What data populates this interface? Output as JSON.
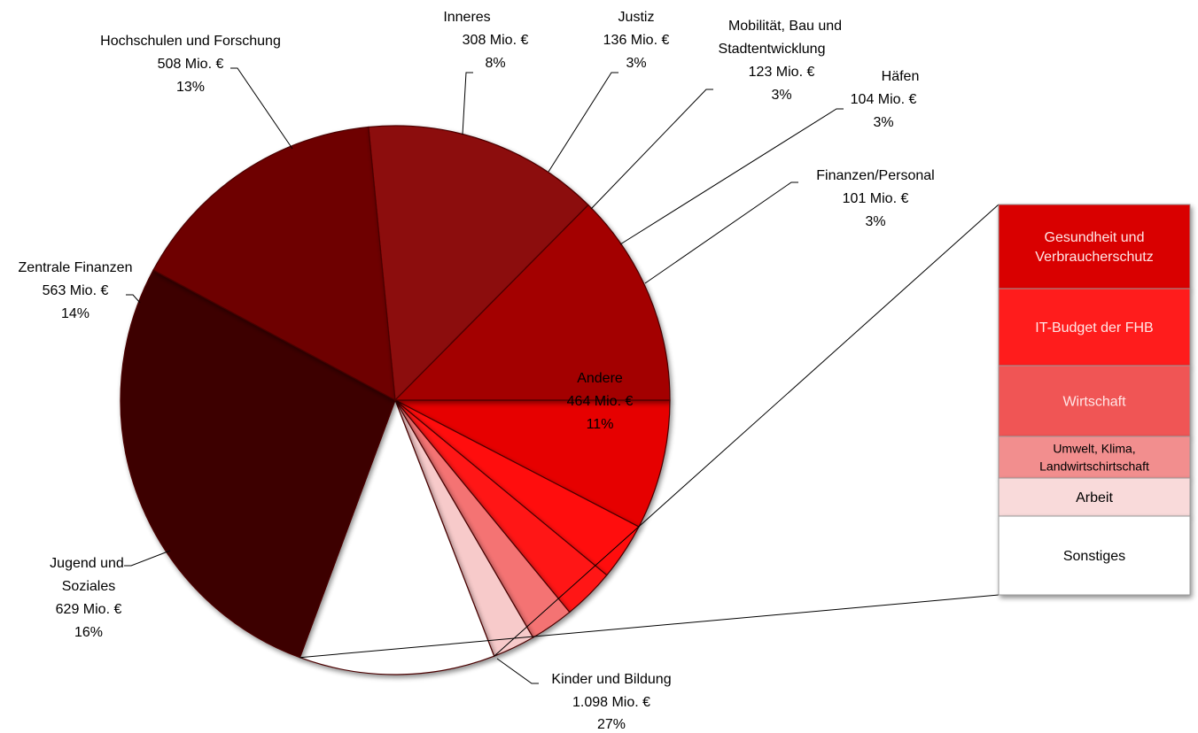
{
  "chart_data": {
    "type": "pie",
    "subtype": "bar-of-pie",
    "title": "",
    "slices": [
      {
        "name": "Inneres",
        "value": 308,
        "value_label": "308 Mio. €",
        "percent_label": "8%",
        "color": "#e60000"
      },
      {
        "name": "Justiz",
        "value": 136,
        "value_label": "136 Mio. €",
        "percent_label": "3%",
        "color": "#ff0a0a"
      },
      {
        "name": "Mobilität, Bau und Stadtentwicklung",
        "value": 123,
        "value_label": "123 Mio. €",
        "percent_label": "3%",
        "color": "#ff1414"
      },
      {
        "name": "Häfen",
        "value": 104,
        "value_label": "104 Mio. €",
        "percent_label": "3%",
        "color": "#f47373"
      },
      {
        "name": "Finanzen/Personal",
        "value": 101,
        "value_label": "101 Mio. €",
        "percent_label": "3%",
        "color": "#f7caca"
      },
      {
        "name": "Andere",
        "value": 464,
        "value_label": "464 Mio. €",
        "percent_label": "11%",
        "color": "#ffffff"
      },
      {
        "name": "Kinder und Bildung",
        "value": 1098,
        "value_label": "1.098 Mio. €",
        "percent_label": "27%",
        "color": "#3d0404"
      },
      {
        "name": "Jugend und Soziales",
        "value": 629,
        "value_label": "629 Mio. €",
        "percent_label": "16%",
        "color": "#6e0606"
      },
      {
        "name": "Zentrale Finanzen",
        "value": 563,
        "value_label": "563 Mio. €",
        "percent_label": "14%",
        "color": "#8c0707"
      },
      {
        "name": "Hochschulen und Forschung",
        "value": 508,
        "value_label": "508 Mio. €",
        "percent_label": "13%",
        "color": "#a30505"
      }
    ],
    "breakout_of": "Andere",
    "breakout_items": [
      {
        "name": "Gesundheit und Verbraucherschutz",
        "color": "#d90000"
      },
      {
        "name": "IT-Budget der FHB",
        "color": "#ff1a1a"
      },
      {
        "name": "Wirtschaft",
        "color": "#f05555"
      },
      {
        "name": "Umwelt, Klima, Landwirtschirtschaft",
        "color": "#f28e8e"
      },
      {
        "name": "Arbeit",
        "color": "#f9dada"
      },
      {
        "name": "Sonstiges",
        "color": "#ffffff"
      }
    ]
  }
}
